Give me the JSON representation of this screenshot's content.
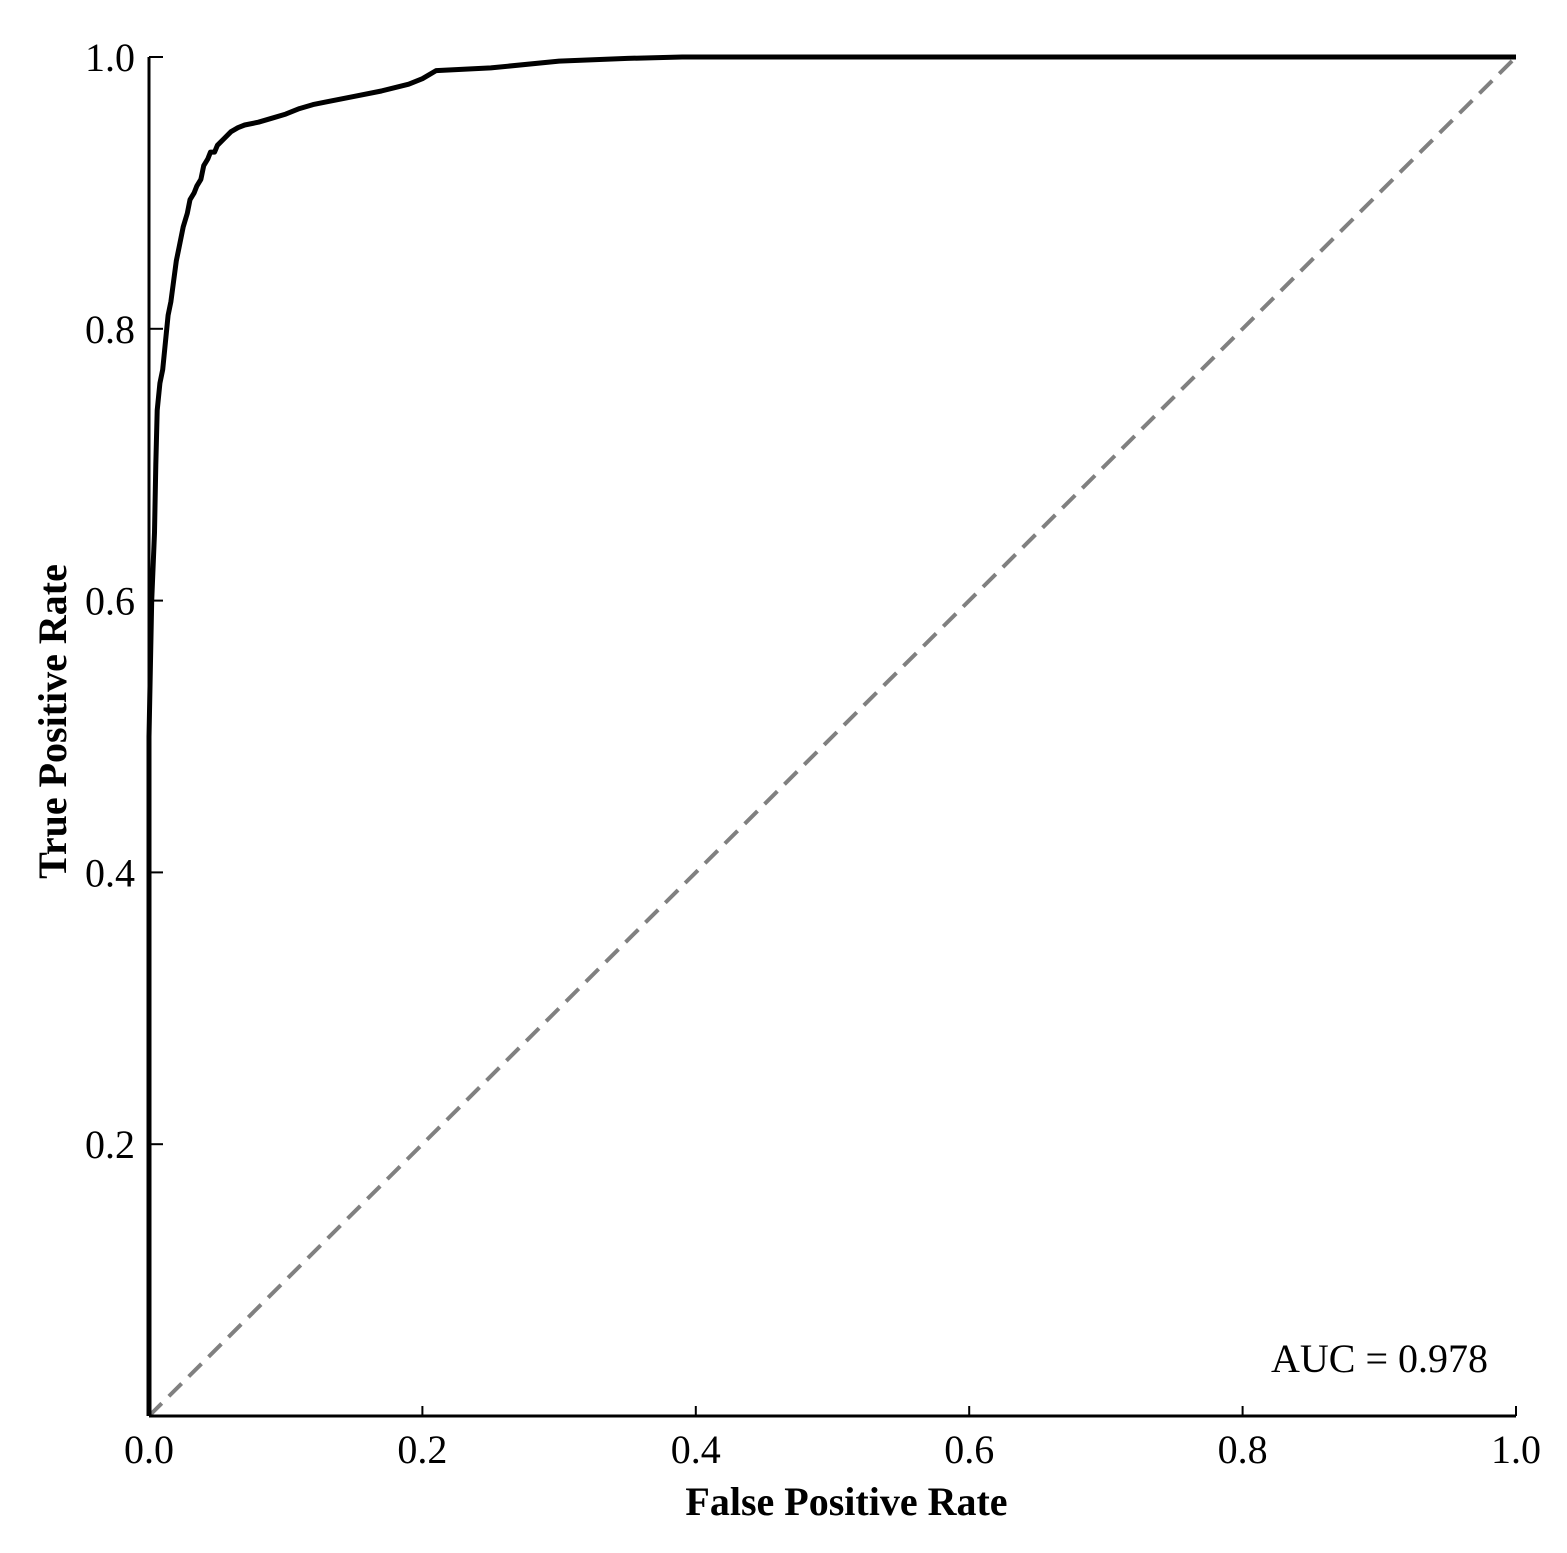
{
  "chart_data": {
    "type": "line",
    "title": "",
    "xlabel": "False Positive Rate",
    "ylabel": "True Positive Rate",
    "xlim": [
      0.0,
      1.0
    ],
    "ylim": [
      0.0,
      1.0
    ],
    "x_ticks": [
      "0.0",
      "0.2",
      "0.4",
      "0.6",
      "0.8",
      "1.0"
    ],
    "y_ticks": [
      "0.2",
      "0.4",
      "0.6",
      "0.8",
      "1.0"
    ],
    "x_tick_values": [
      0.0,
      0.2,
      0.4,
      0.6,
      0.8,
      1.0
    ],
    "y_tick_values": [
      0.2,
      0.4,
      0.6,
      0.8,
      1.0
    ],
    "grid": false,
    "annotation": "AUC = 0.978",
    "series": [
      {
        "role": "roc-curve",
        "color": "#000000",
        "style": "solid",
        "x": [
          0.0,
          0.0,
          0.002,
          0.004,
          0.005,
          0.006,
          0.008,
          0.01,
          0.012,
          0.014,
          0.016,
          0.018,
          0.02,
          0.022,
          0.025,
          0.028,
          0.03,
          0.033,
          0.035,
          0.038,
          0.04,
          0.043,
          0.045,
          0.048,
          0.05,
          0.055,
          0.06,
          0.065,
          0.07,
          0.08,
          0.09,
          0.1,
          0.11,
          0.12,
          0.13,
          0.15,
          0.17,
          0.19,
          0.2,
          0.21,
          0.25,
          0.3,
          0.35,
          0.39,
          0.5,
          0.7,
          1.0
        ],
        "y": [
          0.0,
          0.5,
          0.6,
          0.65,
          0.7,
          0.74,
          0.76,
          0.77,
          0.79,
          0.81,
          0.82,
          0.835,
          0.85,
          0.86,
          0.875,
          0.885,
          0.895,
          0.9,
          0.905,
          0.91,
          0.92,
          0.925,
          0.93,
          0.93,
          0.935,
          0.94,
          0.945,
          0.948,
          0.95,
          0.952,
          0.955,
          0.958,
          0.962,
          0.965,
          0.967,
          0.971,
          0.975,
          0.98,
          0.984,
          0.99,
          0.992,
          0.997,
          0.999,
          1.0,
          1.0,
          1.0,
          1.0
        ]
      },
      {
        "role": "chance-diagonal",
        "color": "#808080",
        "style": "dashed",
        "x": [
          0.0,
          1.0
        ],
        "y": [
          0.0,
          1.0
        ]
      }
    ]
  }
}
